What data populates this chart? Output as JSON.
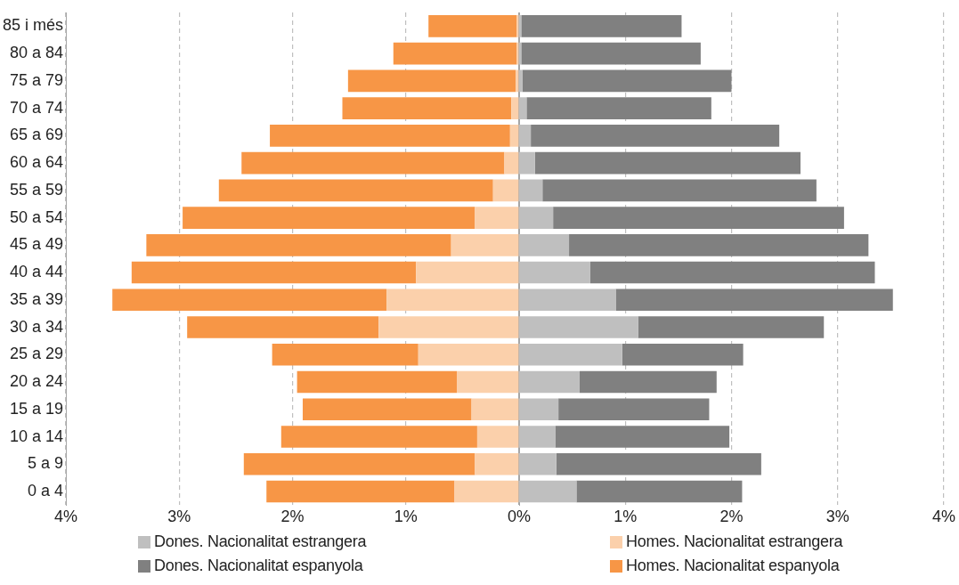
{
  "chart_data": [
    {
      "type": "bar",
      "orientation": "horizontal",
      "stacked": true,
      "tick_labels": "xy",
      "categories": [
        "85 i més",
        "80 a 84",
        "75 a 79",
        "70 a 74",
        "65 a 69",
        "60 a 64",
        "55 a 59",
        "50 a 54",
        "45 a 49",
        "40 a 44",
        "35 a 39",
        "30 a 34",
        "25 a 29",
        "20 a 24",
        "15 a 19",
        "10 a 14",
        "5 a 9",
        "0 a 4"
      ],
      "series": [
        {
          "name": "Homes. Nacionalitat estrangera",
          "color": "#fbd0ab",
          "values": [
            0.02,
            0.02,
            0.03,
            0.07,
            0.08,
            0.13,
            0.23,
            0.39,
            0.6,
            0.91,
            1.17,
            1.24,
            0.89,
            0.55,
            0.42,
            0.37,
            0.39,
            0.57
          ]
        },
        {
          "name": "Homes. Nacionalitat espanyola",
          "color": "#f79646",
          "values": [
            0.78,
            1.09,
            1.48,
            1.49,
            2.12,
            2.32,
            2.42,
            2.58,
            2.69,
            2.51,
            2.42,
            1.69,
            1.29,
            1.41,
            1.49,
            1.73,
            2.04,
            1.66
          ]
        }
      ],
      "xlim": [
        4,
        0
      ],
      "xticks": [
        {
          "value": 4,
          "label": "4%"
        },
        {
          "value": 3,
          "label": "3%"
        },
        {
          "value": 2,
          "label": "2%"
        },
        {
          "value": 1,
          "label": "1%"
        },
        {
          "value": 0,
          "label": "0%"
        }
      ],
      "grid": "x",
      "legend": "bottom"
    },
    {
      "type": "bar",
      "orientation": "horizontal",
      "stacked": true,
      "tick_labels": "x",
      "categories": [
        null,
        null,
        null,
        null,
        null,
        null,
        null,
        null,
        null,
        null,
        null,
        null,
        null,
        null,
        null,
        null,
        null,
        null
      ],
      "series": [
        {
          "name": "Dones. Nacionalitat estrangera",
          "color": "#bfbfbf",
          "values": [
            0.02,
            0.02,
            0.03,
            0.07,
            0.11,
            0.15,
            0.22,
            0.32,
            0.47,
            0.67,
            0.91,
            1.12,
            0.97,
            0.57,
            0.37,
            0.34,
            0.35,
            0.54
          ]
        },
        {
          "name": "Dones. Nacionalitat espanyola",
          "color": "#808080",
          "values": [
            1.51,
            1.69,
            1.97,
            1.74,
            2.34,
            2.5,
            2.58,
            2.74,
            2.82,
            2.68,
            2.61,
            1.75,
            1.14,
            1.29,
            1.42,
            1.64,
            1.93,
            1.56
          ]
        }
      ],
      "xlim": [
        0,
        4
      ],
      "xticks": [
        {
          "value": 1,
          "label": "1%"
        },
        {
          "value": 2,
          "label": "2%"
        },
        {
          "value": 3,
          "label": "3%"
        },
        {
          "value": 4,
          "label": "4%"
        }
      ],
      "grid": "x",
      "legend": "bottom"
    }
  ]
}
